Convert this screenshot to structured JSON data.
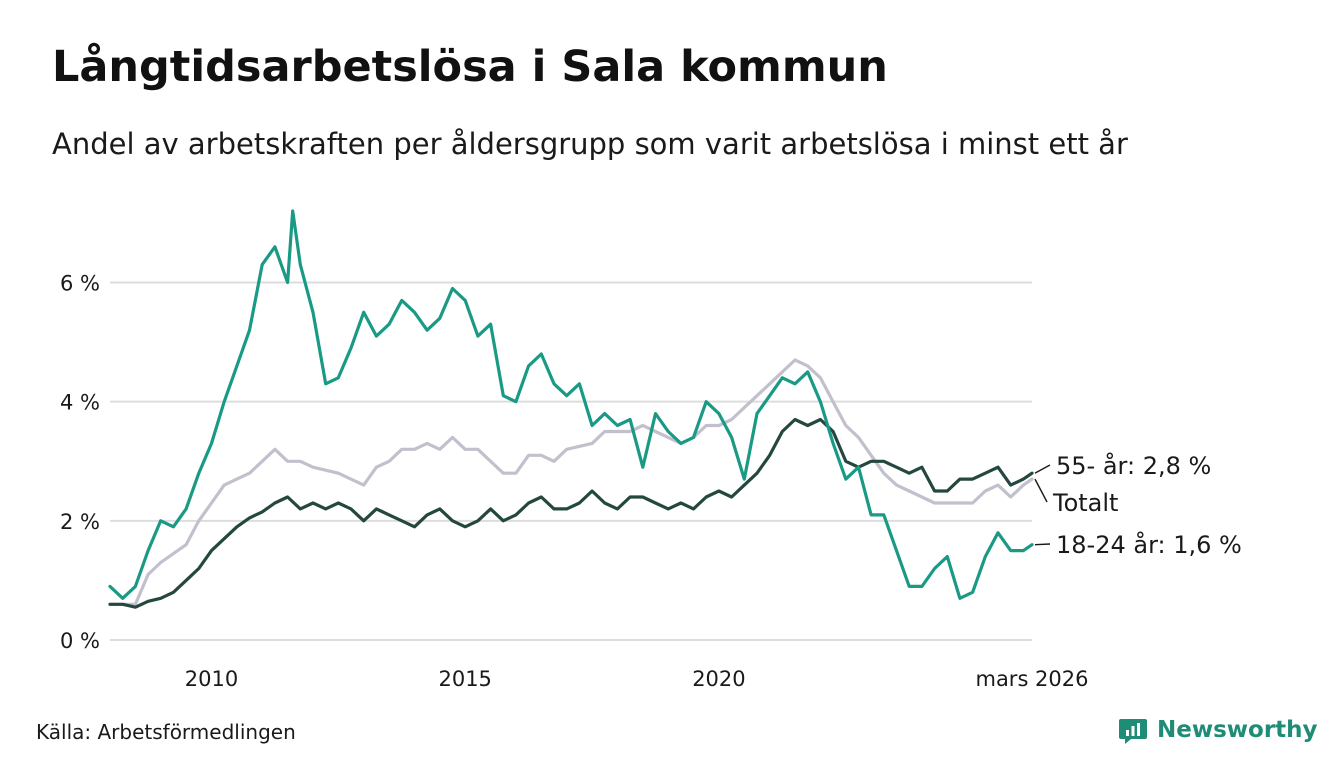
{
  "header": {
    "title": "Långtidsarbetslösa i Sala kommun",
    "subtitle": "Andel av arbetskraften per åldersgrupp som varit arbetslösa i minst ett år"
  },
  "footer": {
    "source": "Källa: Arbetsförmedlingen",
    "brand": "Newsworthy",
    "brand_icon": "newsworthy-logo-icon"
  },
  "colors": {
    "youth": "#1a9a85",
    "senior": "#24483f",
    "total": "#c2c0cc",
    "grid": "#dddddd",
    "brand": "#1f8c78"
  },
  "chart_data": {
    "type": "line",
    "title": "Långtidsarbetslösa i Sala kommun",
    "subtitle": "Andel av arbetskraften per åldersgrupp som varit arbetslösa i minst ett år",
    "xlabel": "",
    "ylabel": "",
    "xlim": [
      2008.0,
      2026.17
    ],
    "ylim": [
      0,
      7.2
    ],
    "grid": "horizontal",
    "legend": "direct labels at right end",
    "yticks": [
      {
        "value": 0,
        "label": "0 %"
      },
      {
        "value": 2,
        "label": "2 %"
      },
      {
        "value": 4,
        "label": "4 %"
      },
      {
        "value": 6,
        "label": "6 %"
      }
    ],
    "xticks": [
      {
        "value": 2010,
        "label": "2010"
      },
      {
        "value": 2015,
        "label": "2015"
      },
      {
        "value": 2020,
        "label": "2020"
      },
      {
        "value": 2026.17,
        "label": "mars 2026"
      }
    ],
    "series": [
      {
        "name": "Totalt",
        "label": "Totalt",
        "color": "#c2c0cc",
        "points": [
          [
            2008.0,
            0.6
          ],
          [
            2008.5,
            0.6
          ],
          [
            2008.75,
            1.1
          ],
          [
            2009.0,
            1.3
          ],
          [
            2009.5,
            1.6
          ],
          [
            2009.75,
            2.0
          ],
          [
            2010.0,
            2.3
          ],
          [
            2010.25,
            2.6
          ],
          [
            2010.5,
            2.7
          ],
          [
            2010.75,
            2.8
          ],
          [
            2011.0,
            3.0
          ],
          [
            2011.25,
            3.2
          ],
          [
            2011.5,
            3.0
          ],
          [
            2011.75,
            3.0
          ],
          [
            2012.0,
            2.9
          ],
          [
            2012.5,
            2.8
          ],
          [
            2013.0,
            2.6
          ],
          [
            2013.25,
            2.9
          ],
          [
            2013.5,
            3.0
          ],
          [
            2013.75,
            3.2
          ],
          [
            2014.0,
            3.2
          ],
          [
            2014.25,
            3.3
          ],
          [
            2014.5,
            3.2
          ],
          [
            2014.75,
            3.4
          ],
          [
            2015.0,
            3.2
          ],
          [
            2015.25,
            3.2
          ],
          [
            2015.5,
            3.0
          ],
          [
            2015.75,
            2.8
          ],
          [
            2016.0,
            2.8
          ],
          [
            2016.25,
            3.1
          ],
          [
            2016.5,
            3.1
          ],
          [
            2016.75,
            3.0
          ],
          [
            2017.0,
            3.2
          ],
          [
            2017.5,
            3.3
          ],
          [
            2017.75,
            3.5
          ],
          [
            2018.0,
            3.5
          ],
          [
            2018.25,
            3.5
          ],
          [
            2018.5,
            3.6
          ],
          [
            2018.75,
            3.5
          ],
          [
            2019.0,
            3.4
          ],
          [
            2019.25,
            3.3
          ],
          [
            2019.5,
            3.4
          ],
          [
            2019.75,
            3.6
          ],
          [
            2020.0,
            3.6
          ],
          [
            2020.25,
            3.7
          ],
          [
            2020.5,
            3.9
          ],
          [
            2020.75,
            4.1
          ],
          [
            2021.0,
            4.3
          ],
          [
            2021.25,
            4.5
          ],
          [
            2021.5,
            4.7
          ],
          [
            2021.75,
            4.6
          ],
          [
            2022.0,
            4.4
          ],
          [
            2022.25,
            4.0
          ],
          [
            2022.5,
            3.6
          ],
          [
            2022.75,
            3.4
          ],
          [
            2023.0,
            3.1
          ],
          [
            2023.25,
            2.8
          ],
          [
            2023.5,
            2.6
          ],
          [
            2023.75,
            2.5
          ],
          [
            2024.0,
            2.4
          ],
          [
            2024.25,
            2.3
          ],
          [
            2024.5,
            2.3
          ],
          [
            2024.75,
            2.3
          ],
          [
            2025.0,
            2.3
          ],
          [
            2025.25,
            2.5
          ],
          [
            2025.5,
            2.6
          ],
          [
            2025.75,
            2.4
          ],
          [
            2026.0,
            2.6
          ],
          [
            2026.17,
            2.7
          ]
        ]
      },
      {
        "name": "55- år",
        "label": "55- år: 2,8 %",
        "color": "#24483f",
        "last_value": 2.8,
        "points": [
          [
            2008.0,
            0.6
          ],
          [
            2008.25,
            0.6
          ],
          [
            2008.5,
            0.55
          ],
          [
            2008.75,
            0.65
          ],
          [
            2009.0,
            0.7
          ],
          [
            2009.25,
            0.8
          ],
          [
            2009.5,
            1.0
          ],
          [
            2009.75,
            1.2
          ],
          [
            2010.0,
            1.5
          ],
          [
            2010.25,
            1.7
          ],
          [
            2010.5,
            1.9
          ],
          [
            2010.75,
            2.05
          ],
          [
            2011.0,
            2.15
          ],
          [
            2011.25,
            2.3
          ],
          [
            2011.5,
            2.4
          ],
          [
            2011.75,
            2.2
          ],
          [
            2012.0,
            2.3
          ],
          [
            2012.25,
            2.2
          ],
          [
            2012.5,
            2.3
          ],
          [
            2012.75,
            2.2
          ],
          [
            2013.0,
            2.0
          ],
          [
            2013.25,
            2.2
          ],
          [
            2013.5,
            2.1
          ],
          [
            2013.75,
            2.0
          ],
          [
            2014.0,
            1.9
          ],
          [
            2014.25,
            2.1
          ],
          [
            2014.5,
            2.2
          ],
          [
            2014.75,
            2.0
          ],
          [
            2015.0,
            1.9
          ],
          [
            2015.25,
            2.0
          ],
          [
            2015.5,
            2.2
          ],
          [
            2015.75,
            2.0
          ],
          [
            2016.0,
            2.1
          ],
          [
            2016.25,
            2.3
          ],
          [
            2016.5,
            2.4
          ],
          [
            2016.75,
            2.2
          ],
          [
            2017.0,
            2.2
          ],
          [
            2017.25,
            2.3
          ],
          [
            2017.5,
            2.5
          ],
          [
            2017.75,
            2.3
          ],
          [
            2018.0,
            2.2
          ],
          [
            2018.25,
            2.4
          ],
          [
            2018.5,
            2.4
          ],
          [
            2018.75,
            2.3
          ],
          [
            2019.0,
            2.2
          ],
          [
            2019.25,
            2.3
          ],
          [
            2019.5,
            2.2
          ],
          [
            2019.75,
            2.4
          ],
          [
            2020.0,
            2.5
          ],
          [
            2020.25,
            2.4
          ],
          [
            2020.5,
            2.6
          ],
          [
            2020.75,
            2.8
          ],
          [
            2021.0,
            3.1
          ],
          [
            2021.25,
            3.5
          ],
          [
            2021.5,
            3.7
          ],
          [
            2021.75,
            3.6
          ],
          [
            2022.0,
            3.7
          ],
          [
            2022.25,
            3.5
          ],
          [
            2022.5,
            3.0
          ],
          [
            2022.75,
            2.9
          ],
          [
            2023.0,
            3.0
          ],
          [
            2023.25,
            3.0
          ],
          [
            2023.5,
            2.9
          ],
          [
            2023.75,
            2.8
          ],
          [
            2024.0,
            2.9
          ],
          [
            2024.25,
            2.5
          ],
          [
            2024.5,
            2.5
          ],
          [
            2024.75,
            2.7
          ],
          [
            2025.0,
            2.7
          ],
          [
            2025.25,
            2.8
          ],
          [
            2025.5,
            2.9
          ],
          [
            2025.75,
            2.6
          ],
          [
            2026.0,
            2.7
          ],
          [
            2026.17,
            2.8
          ]
        ]
      },
      {
        "name": "18-24 år",
        "label": "18-24 år: 1,6 %",
        "color": "#1a9a85",
        "last_value": 1.6,
        "points": [
          [
            2008.0,
            0.9
          ],
          [
            2008.25,
            0.7
          ],
          [
            2008.5,
            0.9
          ],
          [
            2008.75,
            1.5
          ],
          [
            2009.0,
            2.0
          ],
          [
            2009.25,
            1.9
          ],
          [
            2009.5,
            2.2
          ],
          [
            2009.75,
            2.8
          ],
          [
            2010.0,
            3.3
          ],
          [
            2010.25,
            4.0
          ],
          [
            2010.5,
            4.6
          ],
          [
            2010.75,
            5.2
          ],
          [
            2011.0,
            6.3
          ],
          [
            2011.25,
            6.6
          ],
          [
            2011.5,
            6.0
          ],
          [
            2011.6,
            7.2
          ],
          [
            2011.75,
            6.3
          ],
          [
            2012.0,
            5.5
          ],
          [
            2012.25,
            4.3
          ],
          [
            2012.5,
            4.4
          ],
          [
            2012.75,
            4.9
          ],
          [
            2013.0,
            5.5
          ],
          [
            2013.25,
            5.1
          ],
          [
            2013.5,
            5.3
          ],
          [
            2013.75,
            5.7
          ],
          [
            2014.0,
            5.5
          ],
          [
            2014.25,
            5.2
          ],
          [
            2014.5,
            5.4
          ],
          [
            2014.75,
            5.9
          ],
          [
            2015.0,
            5.7
          ],
          [
            2015.25,
            5.1
          ],
          [
            2015.5,
            5.3
          ],
          [
            2015.75,
            4.1
          ],
          [
            2016.0,
            4.0
          ],
          [
            2016.25,
            4.6
          ],
          [
            2016.5,
            4.8
          ],
          [
            2016.75,
            4.3
          ],
          [
            2017.0,
            4.1
          ],
          [
            2017.25,
            4.3
          ],
          [
            2017.5,
            3.6
          ],
          [
            2017.75,
            3.8
          ],
          [
            2018.0,
            3.6
          ],
          [
            2018.25,
            3.7
          ],
          [
            2018.5,
            2.9
          ],
          [
            2018.75,
            3.8
          ],
          [
            2019.0,
            3.5
          ],
          [
            2019.25,
            3.3
          ],
          [
            2019.5,
            3.4
          ],
          [
            2019.75,
            4.0
          ],
          [
            2020.0,
            3.8
          ],
          [
            2020.25,
            3.4
          ],
          [
            2020.5,
            2.7
          ],
          [
            2020.75,
            3.8
          ],
          [
            2021.0,
            4.1
          ],
          [
            2021.25,
            4.4
          ],
          [
            2021.5,
            4.3
          ],
          [
            2021.75,
            4.5
          ],
          [
            2022.0,
            4.0
          ],
          [
            2022.25,
            3.3
          ],
          [
            2022.5,
            2.7
          ],
          [
            2022.75,
            2.9
          ],
          [
            2023.0,
            2.1
          ],
          [
            2023.25,
            2.1
          ],
          [
            2023.5,
            1.5
          ],
          [
            2023.75,
            0.9
          ],
          [
            2024.0,
            0.9
          ],
          [
            2024.25,
            1.2
          ],
          [
            2024.5,
            1.4
          ],
          [
            2024.75,
            0.7
          ],
          [
            2025.0,
            0.8
          ],
          [
            2025.25,
            1.4
          ],
          [
            2025.5,
            1.8
          ],
          [
            2025.75,
            1.5
          ],
          [
            2026.0,
            1.5
          ],
          [
            2026.17,
            1.6
          ]
        ]
      }
    ]
  }
}
